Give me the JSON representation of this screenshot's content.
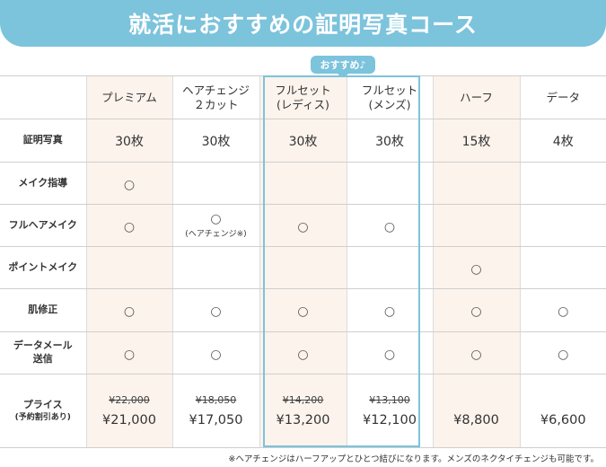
{
  "title": "就活におすすめの証明写真コース",
  "badge": "おすすめ♪",
  "plans": [
    {
      "name": "プレミアム",
      "name2": ""
    },
    {
      "name": "ヘアチェンジ",
      "name2": "２カット"
    },
    {
      "name": "フルセット",
      "name2": "(レディス)"
    },
    {
      "name": "フルセット",
      "name2": "(メンズ)"
    },
    {
      "name": "ハーフ",
      "name2": ""
    },
    {
      "name": "データ",
      "name2": ""
    }
  ],
  "rows": {
    "photos": {
      "label": "証明写真",
      "values": [
        "30枚",
        "30枚",
        "30枚",
        "30枚",
        "15枚",
        "4枚"
      ]
    },
    "makeup_guide": {
      "label": "メイク指導",
      "values": [
        "○",
        "",
        "",
        "",
        "",
        ""
      ]
    },
    "full_hair": {
      "label": "フルヘアメイク",
      "values": [
        "○",
        "○",
        "○",
        "○",
        "",
        ""
      ],
      "note": "(ヘアチェンジ※)"
    },
    "point_makeup": {
      "label": "ポイントメイク",
      "values": [
        "",
        "",
        "",
        "",
        "○",
        ""
      ]
    },
    "skin_retouch": {
      "label": "肌修正",
      "values": [
        "○",
        "○",
        "○",
        "○",
        "○",
        "○"
      ]
    },
    "data_mail": {
      "label": "データメール",
      "label2": "送信",
      "values": [
        "○",
        "○",
        "○",
        "○",
        "○",
        "○"
      ]
    },
    "price": {
      "label": "プライス",
      "label2": "(予約割引あり)",
      "old": [
        "¥22,000",
        "¥18,050",
        "¥14,200",
        "¥13,100",
        "",
        ""
      ],
      "new": [
        "¥21,000",
        "¥17,050",
        "¥13,200",
        "¥12,100",
        "¥8,800",
        "¥6,600"
      ]
    }
  },
  "footnote": "※ヘアチェンジはハーフアップとひとつ結びになります。メンズのネクタイチェンジも可能です。"
}
